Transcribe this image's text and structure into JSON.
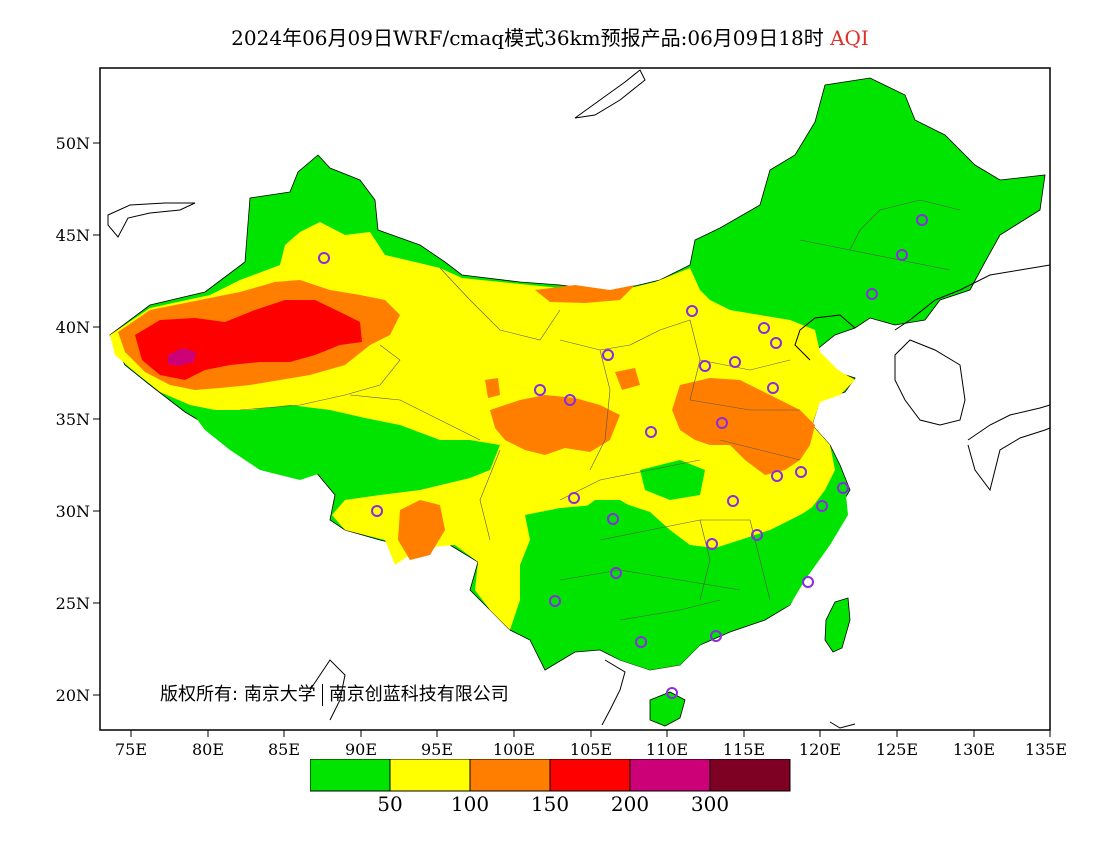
{
  "header": {
    "title": "2024年06月09日WRF/cmaq模式36km预报产品:06月09日18时",
    "variable": "AQI"
  },
  "axes": {
    "x_ticks": [
      "75E",
      "80E",
      "85E",
      "90E",
      "95E",
      "100E",
      "105E",
      "110E",
      "115E",
      "120E",
      "125E",
      "130E",
      "135E"
    ],
    "y_ticks": [
      "50N",
      "45N",
      "40N",
      "35N",
      "30N",
      "25N",
      "20N"
    ]
  },
  "copyright": {
    "prefix": "版权所有:",
    "org1": "南京大学",
    "org2": "南京创蓝科技有限公司"
  },
  "legend": {
    "colors": [
      "#00e400",
      "#ffff00",
      "#ff7e00",
      "#ff0000",
      "#cc0077",
      "#7e0023"
    ],
    "labels": [
      "50",
      "100",
      "150",
      "200",
      "300"
    ]
  },
  "colors": {
    "good": "#00e400",
    "moderate": "#ffff00",
    "usg": "#ff7e00",
    "unhealthy": "#ff0000",
    "very_unhealthy": "#cc0077",
    "hazardous": "#7e0023",
    "station_marker": "#8a2be2"
  }
}
